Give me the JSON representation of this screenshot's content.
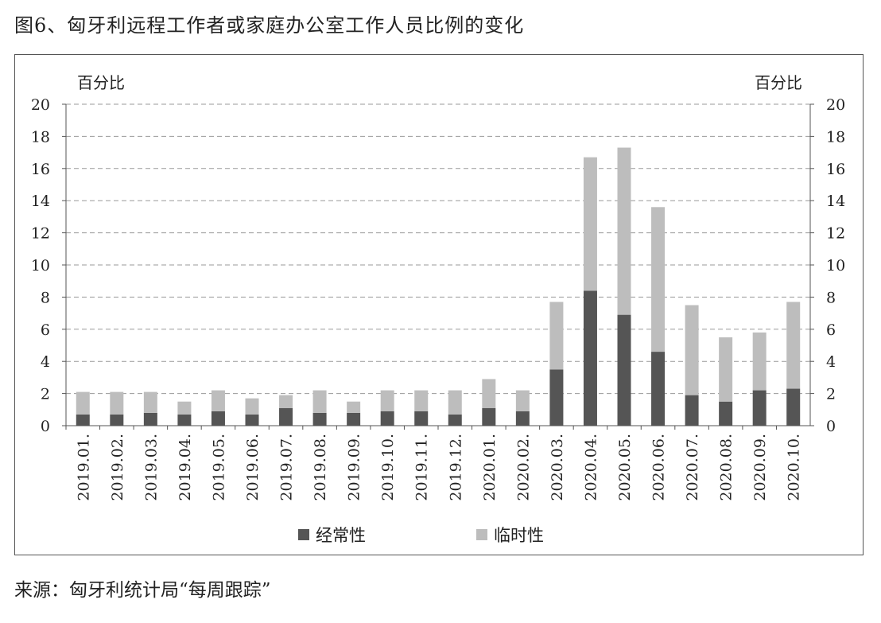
{
  "figure": {
    "title": "图6、匈牙利远程工作者或家庭办公室工作人员比例的变化",
    "source": "来源：匈牙利统计局“每周跟踪”"
  },
  "chart_data": {
    "type": "bar",
    "stacked": true,
    "categories": [
      "2019.01.",
      "2019.02.",
      "2019.03.",
      "2019.04.",
      "2019.05.",
      "2019.06.",
      "2019.07.",
      "2019.08.",
      "2019.09.",
      "2019.10.",
      "2019.11.",
      "2019.12.",
      "2020.01.",
      "2020.02.",
      "2020.03.",
      "2020.04.",
      "2020.05.",
      "2020.06.",
      "2020.07.",
      "2020.08.",
      "2020.09.",
      "2020.10."
    ],
    "series": [
      {
        "name": "经常性",
        "color": "#555555",
        "values": [
          0.7,
          0.7,
          0.8,
          0.7,
          0.9,
          0.7,
          1.1,
          0.8,
          0.8,
          0.9,
          0.9,
          0.7,
          1.1,
          0.9,
          3.5,
          8.4,
          6.9,
          4.6,
          1.9,
          1.5,
          2.2,
          2.3
        ]
      },
      {
        "name": "临时性",
        "color": "#bdbdbd",
        "values": [
          1.4,
          1.4,
          1.3,
          0.8,
          1.3,
          1.0,
          0.8,
          1.4,
          0.7,
          1.3,
          1.3,
          1.5,
          1.8,
          1.3,
          4.2,
          8.3,
          10.4,
          9.0,
          5.6,
          4.0,
          3.6,
          5.4
        ]
      }
    ],
    "ylabel_left": "百分比",
    "ylabel_right": "百分比",
    "ylim": [
      0,
      20
    ],
    "yticks": [
      0,
      2,
      4,
      6,
      8,
      10,
      12,
      14,
      16,
      18,
      20
    ],
    "grid": true,
    "legend_position": "bottom"
  }
}
